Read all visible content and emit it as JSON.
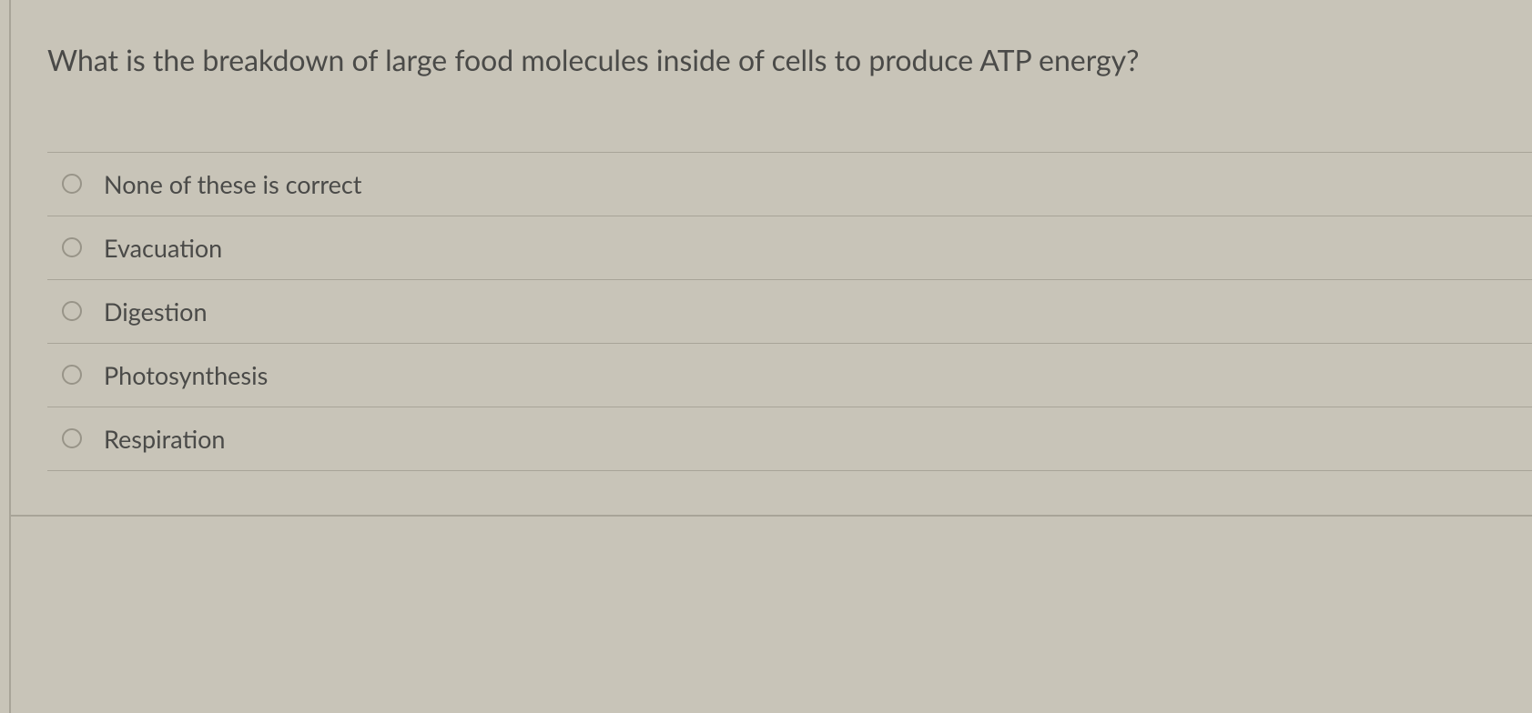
{
  "question": {
    "text": "What is the breakdown of large food molecules inside of cells to produce ATP energy?"
  },
  "options": [
    {
      "label": "None of these is correct"
    },
    {
      "label": "Evacuation"
    },
    {
      "label": "Digestion"
    },
    {
      "label": "Photosynthesis"
    },
    {
      "label": "Respiration"
    }
  ],
  "colors": {
    "background": "#c8c4b8",
    "text": "#4a4a48",
    "border": "#a8a498",
    "radio_border": "#989488"
  },
  "typography": {
    "question_fontsize": 32,
    "option_fontsize": 27
  }
}
